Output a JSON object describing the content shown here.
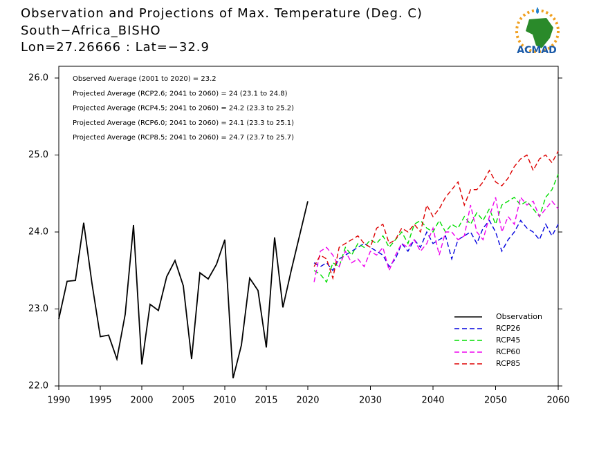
{
  "chart_data": {
    "type": "line",
    "title": "Observation and Projections of Max. Temperature (Deg. C)",
    "subtitle": "South−Africa_BISHO",
    "location": "Lon=27.26666 : Lat=−32.9",
    "logo_text": "ACMAD",
    "annotations": [
      "Observed Average (2001 to 2020) = 23.2",
      "Projected Average (RCP2.6; 2041 to 2060) = 24 (23.1 to 24.8)",
      "Projected Average (RCP4.5; 2041 to 2060) = 24.2 (23.3 to 25.2)",
      "Projected Average (RCP6.0; 2041 to 2060) = 24.1 (23.3 to 25.1)",
      "Projected Average (RCP8.5; 2041 to 2060) = 24.7 (23.7 to 25.7)"
    ],
    "xlim": [
      1990,
      2060
    ],
    "xticks": [
      1990,
      1995,
      2000,
      2005,
      2010,
      2015,
      2020,
      2030,
      2040,
      2050,
      2060
    ],
    "ylim": [
      22,
      26
    ],
    "yticks": [
      {
        "value": 22,
        "label": "22.0"
      },
      {
        "value": 23,
        "label": "23.0"
      },
      {
        "value": 24,
        "label": "24.0"
      },
      {
        "value": 25,
        "label": "25.0"
      },
      {
        "value": 26,
        "label": "26.0"
      }
    ],
    "legend": "lower right",
    "series": [
      {
        "name": "Observation",
        "color": "#000000",
        "dashed": false,
        "x": [
          1990,
          1991,
          1992,
          1993,
          1994,
          1995,
          1996,
          1997,
          1998,
          1999,
          2000,
          2001,
          2002,
          2003,
          2004,
          2005,
          2006,
          2007,
          2008,
          2009,
          2010,
          2011,
          2012,
          2013,
          2014,
          2015,
          2016,
          2017,
          2018,
          2019,
          2020
        ],
        "values": [
          22.87,
          23.36,
          23.37,
          24.12,
          23.33,
          22.64,
          22.66,
          22.35,
          22.93,
          24.09,
          22.28,
          23.06,
          22.98,
          23.42,
          23.63,
          23.3,
          22.35,
          23.47,
          23.39,
          23.58,
          23.9,
          22.1,
          22.53,
          23.4,
          23.24,
          22.5,
          23.93,
          23.02,
          23.5,
          23.95,
          24.4
        ]
      },
      {
        "name": "RCP26",
        "color": "#0000dd",
        "dashed": true,
        "x": [
          2021,
          2022,
          2023,
          2024,
          2025,
          2026,
          2027,
          2028,
          2029,
          2030,
          2031,
          2032,
          2033,
          2034,
          2035,
          2036,
          2037,
          2038,
          2039,
          2040,
          2041,
          2042,
          2043,
          2044,
          2045,
          2046,
          2047,
          2048,
          2049,
          2050,
          2051,
          2052,
          2053,
          2054,
          2055,
          2056,
          2057,
          2058,
          2059,
          2060
        ],
        "values": [
          23.6,
          23.55,
          23.6,
          23.5,
          23.65,
          23.7,
          23.75,
          23.8,
          23.85,
          23.8,
          23.75,
          23.7,
          23.55,
          23.65,
          23.85,
          23.75,
          23.9,
          23.8,
          24.0,
          23.85,
          23.9,
          23.95,
          23.65,
          23.9,
          23.95,
          24.0,
          23.85,
          24.05,
          24.15,
          24.0,
          23.75,
          23.9,
          24.0,
          24.15,
          24.05,
          24.0,
          23.9,
          24.1,
          23.95,
          24.1
        ]
      },
      {
        "name": "RCP45",
        "color": "#00dd00",
        "dashed": true,
        "x": [
          2021,
          2022,
          2023,
          2024,
          2025,
          2026,
          2027,
          2028,
          2029,
          2030,
          2031,
          2032,
          2033,
          2034,
          2035,
          2036,
          2037,
          2038,
          2039,
          2040,
          2041,
          2042,
          2043,
          2044,
          2045,
          2046,
          2047,
          2048,
          2049,
          2050,
          2051,
          2052,
          2053,
          2054,
          2055,
          2056,
          2057,
          2058,
          2059,
          2060
        ],
        "values": [
          23.5,
          23.45,
          23.35,
          23.6,
          23.55,
          23.8,
          23.7,
          23.85,
          23.8,
          23.9,
          23.85,
          23.95,
          23.8,
          23.9,
          24.0,
          23.85,
          24.1,
          24.15,
          24.05,
          24.0,
          24.15,
          24.0,
          24.1,
          24.05,
          24.2,
          24.1,
          24.25,
          24.15,
          24.3,
          24.1,
          24.35,
          24.4,
          24.45,
          24.35,
          24.4,
          24.3,
          24.2,
          24.45,
          24.55,
          24.75
        ]
      },
      {
        "name": "RCP60",
        "color": "#ee00ee",
        "dashed": true,
        "x": [
          2021,
          2022,
          2023,
          2024,
          2025,
          2026,
          2027,
          2028,
          2029,
          2030,
          2031,
          2032,
          2033,
          2034,
          2035,
          2036,
          2037,
          2038,
          2039,
          2040,
          2041,
          2042,
          2043,
          2044,
          2045,
          2046,
          2047,
          2048,
          2049,
          2050,
          2051,
          2052,
          2053,
          2054,
          2055,
          2056,
          2057,
          2058,
          2059,
          2060
        ],
        "values": [
          23.35,
          23.75,
          23.8,
          23.7,
          23.55,
          23.75,
          23.6,
          23.65,
          23.55,
          23.75,
          23.7,
          23.8,
          23.5,
          23.7,
          23.85,
          23.8,
          23.9,
          23.75,
          23.85,
          24.05,
          23.7,
          24.0,
          24.0,
          23.9,
          23.95,
          24.35,
          24.0,
          23.9,
          24.2,
          24.45,
          24.0,
          24.2,
          24.1,
          24.45,
          24.35,
          24.4,
          24.2,
          24.3,
          24.4,
          24.3
        ]
      },
      {
        "name": "RCP85",
        "color": "#dd0000",
        "dashed": true,
        "x": [
          2021,
          2022,
          2023,
          2024,
          2025,
          2026,
          2027,
          2028,
          2029,
          2030,
          2031,
          2032,
          2033,
          2034,
          2035,
          2036,
          2037,
          2038,
          2039,
          2040,
          2041,
          2042,
          2043,
          2044,
          2045,
          2046,
          2047,
          2048,
          2049,
          2050,
          2051,
          2052,
          2053,
          2054,
          2055,
          2056,
          2057,
          2058,
          2059,
          2060
        ],
        "values": [
          23.55,
          23.7,
          23.65,
          23.4,
          23.8,
          23.85,
          23.9,
          23.95,
          23.85,
          23.8,
          24.05,
          24.1,
          23.85,
          23.9,
          24.05,
          24.0,
          24.1,
          24.0,
          24.35,
          24.2,
          24.3,
          24.45,
          24.55,
          24.65,
          24.35,
          24.55,
          24.55,
          24.65,
          24.8,
          24.65,
          24.6,
          24.7,
          24.85,
          24.95,
          25.0,
          24.8,
          24.95,
          25.0,
          24.9,
          25.05
        ]
      }
    ]
  }
}
